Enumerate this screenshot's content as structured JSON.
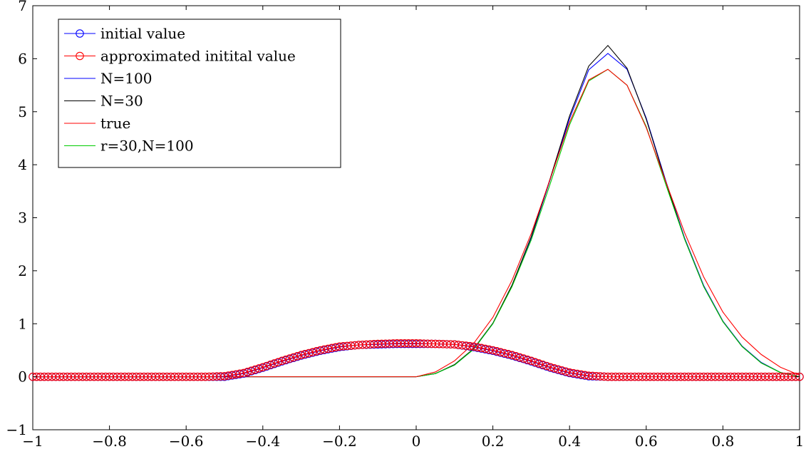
{
  "chart_data": {
    "type": "line",
    "title": "",
    "xlabel": "",
    "ylabel": "",
    "xlim": [
      -1,
      1
    ],
    "ylim": [
      -1,
      7
    ],
    "grid": false,
    "legend_position": "top-left",
    "x_ticks": [
      -1,
      -0.8,
      -0.6,
      -0.4,
      -0.2,
      0,
      0.2,
      0.4,
      0.6,
      0.8,
      1
    ],
    "x_tick_labels": [
      "−1",
      "−0.8",
      "−0.6",
      "−0.4",
      "−0.2",
      "0",
      "0.2",
      "0.4",
      "0.6",
      "0.8",
      "1"
    ],
    "y_ticks": [
      -1,
      0,
      1,
      2,
      3,
      4,
      5,
      6,
      7
    ],
    "y_tick_labels": [
      "−1",
      "0",
      "1",
      "2",
      "3",
      "4",
      "5",
      "6",
      "7"
    ],
    "series": [
      {
        "name": "initial value",
        "color": "#0000ff",
        "marker": "circle",
        "x": [
          -1,
          -0.95,
          -0.9,
          -0.85,
          -0.8,
          -0.75,
          -0.7,
          -0.65,
          -0.6,
          -0.55,
          -0.5,
          -0.45,
          -0.4,
          -0.35,
          -0.3,
          -0.25,
          -0.2,
          -0.15,
          -0.1,
          -0.05,
          0,
          0.05,
          0.1,
          0.15,
          0.2,
          0.25,
          0.3,
          0.35,
          0.4,
          0.45,
          0.5,
          0.55,
          0.6,
          0.65,
          0.7,
          0.75,
          0.8,
          0.85,
          0.9,
          0.95,
          1
        ],
        "y": [
          0,
          0,
          0,
          0,
          0,
          0,
          0,
          0,
          0,
          0,
          0,
          0.06,
          0.17,
          0.29,
          0.4,
          0.49,
          0.56,
          0.6,
          0.61,
          0.62,
          0.62,
          0.62,
          0.61,
          0.56,
          0.49,
          0.4,
          0.29,
          0.17,
          0.07,
          0.01,
          0,
          0,
          0,
          0,
          0,
          0,
          0,
          0,
          0,
          0,
          0
        ]
      },
      {
        "name": "approximated initital value",
        "color": "#ff0000",
        "marker": "circle",
        "x": [
          -1,
          -0.95,
          -0.9,
          -0.85,
          -0.8,
          -0.75,
          -0.7,
          -0.65,
          -0.6,
          -0.55,
          -0.5,
          -0.45,
          -0.4,
          -0.35,
          -0.3,
          -0.25,
          -0.2,
          -0.15,
          -0.1,
          -0.05,
          0,
          0.05,
          0.1,
          0.15,
          0.2,
          0.25,
          0.3,
          0.35,
          0.4,
          0.45,
          0.5,
          0.55,
          0.6,
          0.65,
          0.7,
          0.75,
          0.8,
          0.85,
          0.9,
          0.95,
          1
        ],
        "y": [
          0,
          0,
          0,
          0,
          0,
          0,
          0,
          0,
          0,
          0,
          0.01,
          0.07,
          0.18,
          0.3,
          0.41,
          0.5,
          0.57,
          0.6,
          0.62,
          0.63,
          0.63,
          0.62,
          0.61,
          0.57,
          0.5,
          0.41,
          0.3,
          0.18,
          0.08,
          0.02,
          0,
          0,
          0,
          0,
          0,
          0,
          0,
          0,
          0,
          0,
          0
        ]
      },
      {
        "name": "N=100",
        "color": "#0000ff",
        "marker": "none",
        "x": [
          -1,
          -0.5,
          0,
          0.05,
          0.1,
          0.15,
          0.2,
          0.25,
          0.3,
          0.35,
          0.4,
          0.45,
          0.5,
          0.55,
          0.6,
          0.65,
          0.7,
          0.75,
          0.8,
          0.85,
          0.9,
          0.95,
          1
        ],
        "y": [
          0,
          0,
          0,
          0.06,
          0.22,
          0.52,
          1.0,
          1.72,
          2.62,
          3.73,
          4.87,
          5.79,
          6.1,
          5.8,
          4.88,
          3.72,
          2.62,
          1.72,
          1.05,
          0.58,
          0.27,
          0.08,
          0
        ]
      },
      {
        "name": "N=30",
        "color": "#000000",
        "marker": "none",
        "x": [
          -1,
          -0.5,
          0,
          0.05,
          0.1,
          0.15,
          0.2,
          0.25,
          0.3,
          0.35,
          0.4,
          0.45,
          0.5,
          0.55,
          0.6,
          0.65,
          0.7,
          0.75,
          0.8,
          0.85,
          0.9,
          0.95,
          1
        ],
        "y": [
          0,
          0,
          0,
          0.06,
          0.23,
          0.53,
          1.01,
          1.73,
          2.64,
          3.75,
          4.92,
          5.86,
          6.25,
          5.82,
          4.86,
          3.7,
          2.6,
          1.7,
          1.04,
          0.57,
          0.26,
          0.08,
          0
        ]
      },
      {
        "name": "true",
        "color": "#ff0000",
        "marker": "none",
        "x": [
          -1,
          -0.5,
          0,
          0.05,
          0.1,
          0.15,
          0.2,
          0.25,
          0.3,
          0.35,
          0.4,
          0.45,
          0.5,
          0.55,
          0.6,
          0.65,
          0.7,
          0.75,
          0.8,
          0.85,
          0.9,
          0.95,
          1
        ],
        "y": [
          0,
          0,
          0,
          0.09,
          0.3,
          0.63,
          1.12,
          1.82,
          2.7,
          3.74,
          4.8,
          5.6,
          5.8,
          5.5,
          4.7,
          3.7,
          2.72,
          1.88,
          1.22,
          0.75,
          0.42,
          0.18,
          0.03
        ]
      },
      {
        "name": "r=30,N=100",
        "color": "#00cc00",
        "marker": "none",
        "x": [
          -1,
          -0.5,
          0,
          0.05,
          0.1,
          0.15,
          0.2,
          0.25,
          0.3,
          0.35,
          0.4,
          0.45,
          0.5,
          0.55,
          0.6,
          0.65,
          0.7,
          0.75,
          0.8,
          0.85,
          0.9,
          0.95,
          1
        ],
        "y": [
          0,
          0,
          0,
          0.06,
          0.22,
          0.52,
          1.0,
          1.7,
          2.58,
          3.65,
          4.75,
          5.58,
          5.8,
          5.5,
          4.72,
          3.65,
          2.6,
          1.7,
          1.04,
          0.57,
          0.26,
          0.08,
          0
        ]
      }
    ]
  }
}
